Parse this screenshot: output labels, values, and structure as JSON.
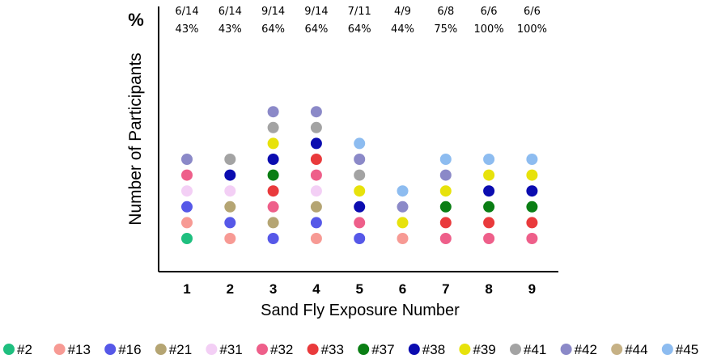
{
  "chart_data": {
    "type": "scatter",
    "title": "",
    "xlabel": "Sand Fly Exposure Number",
    "ylabel": "Number of Participants",
    "corner_label": "%",
    "categories": [
      "1",
      "2",
      "3",
      "4",
      "5",
      "6",
      "7",
      "8",
      "9"
    ],
    "annotations": [
      {
        "fraction": "6/14",
        "percent": "43%"
      },
      {
        "fraction": "6/14",
        "percent": "43%"
      },
      {
        "fraction": "9/14",
        "percent": "64%"
      },
      {
        "fraction": "9/14",
        "percent": "64%"
      },
      {
        "fraction": "7/11",
        "percent": "64%"
      },
      {
        "fraction": "4/9",
        "percent": "44%"
      },
      {
        "fraction": "6/8",
        "percent": "75%"
      },
      {
        "fraction": "6/6",
        "percent": "100%"
      },
      {
        "fraction": "6/6",
        "percent": "100%"
      }
    ],
    "participants": [
      {
        "name": "#2",
        "color": "#1fbf7f"
      },
      {
        "name": "#13",
        "color": "#f79a94"
      },
      {
        "name": "#16",
        "color": "#5658e8"
      },
      {
        "name": "#21",
        "color": "#b5a573"
      },
      {
        "name": "#31",
        "color": "#f3cff5"
      },
      {
        "name": "#32",
        "color": "#ee5f8a"
      },
      {
        "name": "#33",
        "color": "#e93a3c"
      },
      {
        "name": "#37",
        "color": "#0a7e14"
      },
      {
        "name": "#38",
        "color": "#0b0cb0"
      },
      {
        "name": "#39",
        "color": "#e7e20b"
      },
      {
        "name": "#41",
        "color": "#a3a3a3"
      },
      {
        "name": "#42",
        "color": "#8b89c8"
      },
      {
        "name": "#44",
        "color": "#c6b185"
      },
      {
        "name": "#45",
        "color": "#8dbcf0"
      }
    ],
    "stacks": [
      [
        "#2",
        "#13",
        "#16",
        "#31",
        "#32",
        "#42"
      ],
      [
        "#13",
        "#16",
        "#21",
        "#31",
        "#38",
        "#41"
      ],
      [
        "#16",
        "#21",
        "#32",
        "#33",
        "#37",
        "#38",
        "#39",
        "#41",
        "#42"
      ],
      [
        "#13",
        "#16",
        "#21",
        "#31",
        "#32",
        "#33",
        "#38",
        "#41",
        "#42"
      ],
      [
        "#16",
        "#32",
        "#38",
        "#39",
        "#41",
        "#42",
        "#45"
      ],
      [
        "#13",
        "#39",
        "#42",
        "#45"
      ],
      [
        "#32",
        "#33",
        "#37",
        "#39",
        "#42",
        "#45"
      ],
      [
        "#32",
        "#33",
        "#37",
        "#38",
        "#39",
        "#45"
      ],
      [
        "#32",
        "#33",
        "#37",
        "#38",
        "#39",
        "#45"
      ]
    ],
    "legend_position": "bottom",
    "grid": false
  }
}
